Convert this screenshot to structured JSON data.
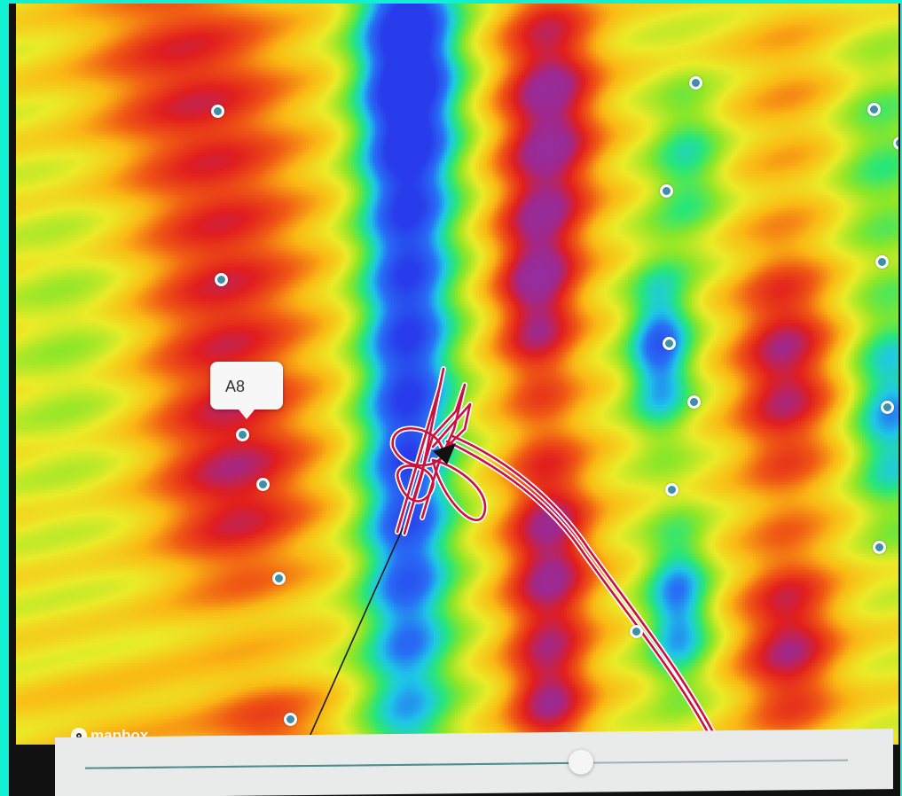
{
  "map": {
    "attribution_logo": "mapbox",
    "icons": {
      "logo": "mapbox-logo-icon"
    },
    "popup": {
      "label": "A8"
    },
    "markers": [
      "marker",
      "marker",
      "marker",
      "marker",
      "marker",
      "marker",
      "marker",
      "marker",
      "marker",
      "marker",
      "marker",
      "marker",
      "marker",
      "marker",
      "marker",
      "marker",
      "marker"
    ],
    "colors": {
      "marker_fill": "#3f8fa8",
      "marker_border": "#ffffff",
      "track": "#cc1040",
      "track_outline": "#ffffff",
      "line": "#1a1a1a"
    }
  },
  "timeline": {
    "progress": 0.65,
    "colors": {
      "fill": "#4b8f8f",
      "track": "#9fb1b1",
      "bar": "#e9ebeb"
    }
  }
}
